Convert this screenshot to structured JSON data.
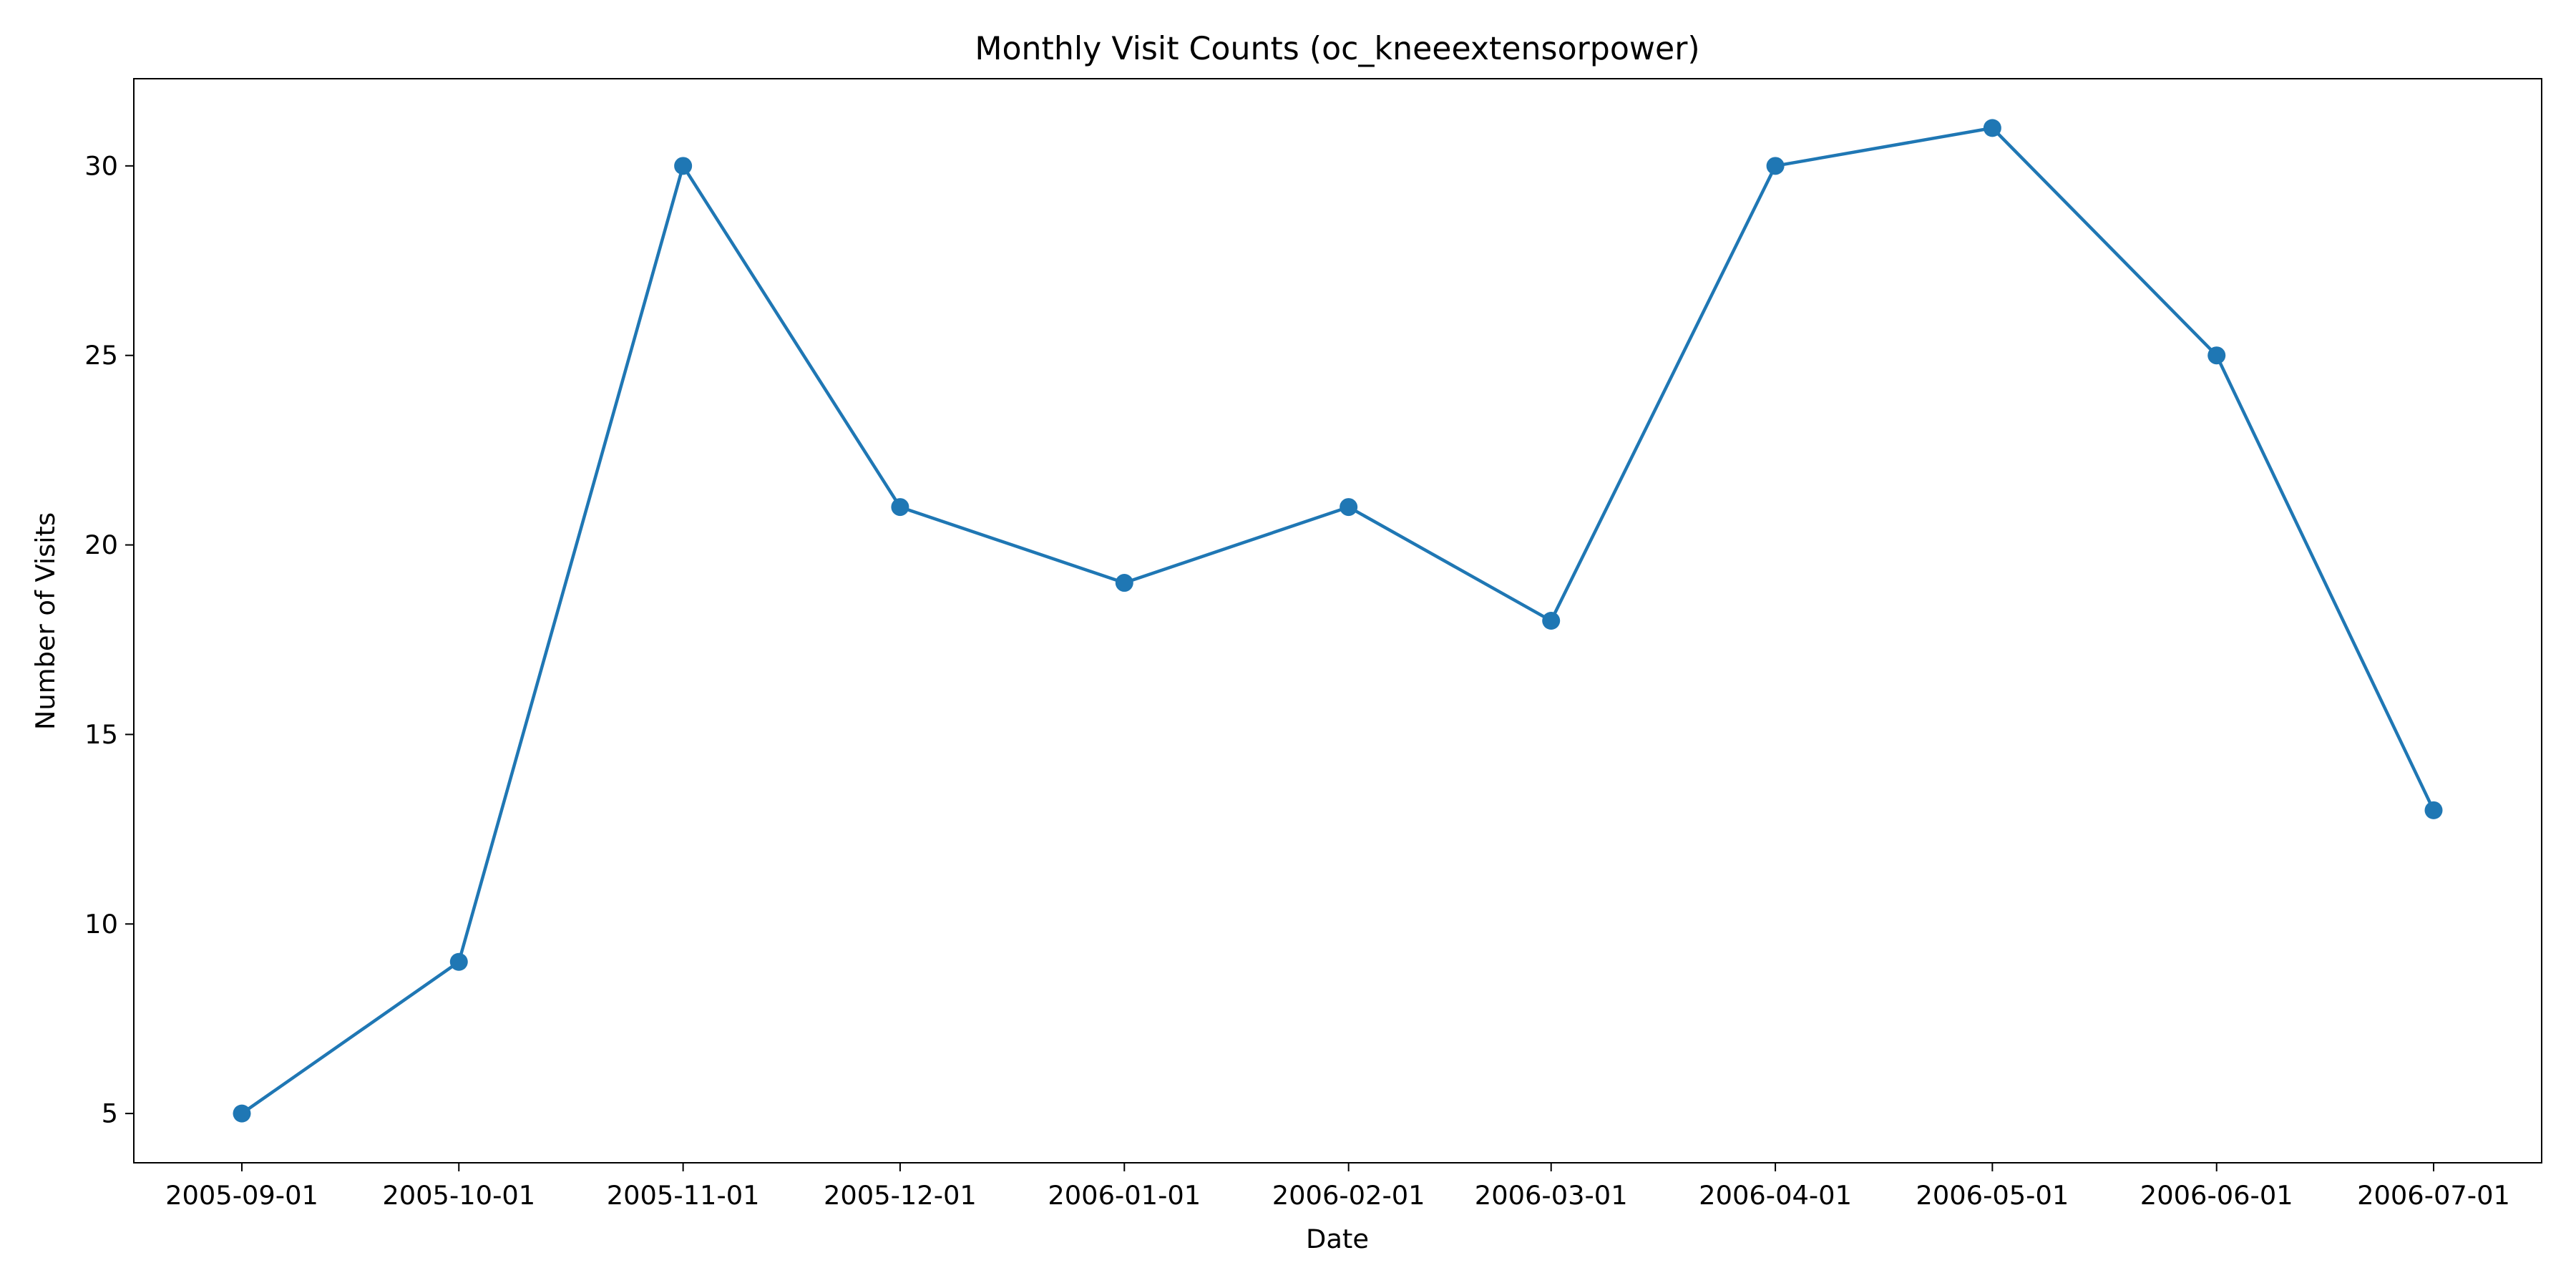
{
  "chart_data": {
    "type": "line",
    "title": "Monthly Visit Counts (oc_kneeextensorpower)",
    "xlabel": "Date",
    "ylabel": "Number of Visits",
    "x": [
      "2005-09-01",
      "2005-10-01",
      "2005-11-01",
      "2005-12-01",
      "2006-01-01",
      "2006-02-01",
      "2006-03-01",
      "2006-04-01",
      "2006-05-01",
      "2006-06-01",
      "2006-07-01"
    ],
    "y": [
      5,
      9,
      30,
      21,
      19,
      21,
      18,
      30,
      31,
      25,
      13
    ],
    "ylim": [
      3.7,
      32.3
    ],
    "yticks": [
      5,
      10,
      15,
      20,
      25,
      30
    ],
    "xticks": [
      "2005-09-01",
      "2005-10-01",
      "2005-11-01",
      "2005-12-01",
      "2006-01-01",
      "2006-02-01",
      "2006-03-01",
      "2006-04-01",
      "2006-05-01",
      "2006-06-01",
      "2006-07-01"
    ],
    "grid": false,
    "markers": true,
    "color": "#1f77b4"
  }
}
